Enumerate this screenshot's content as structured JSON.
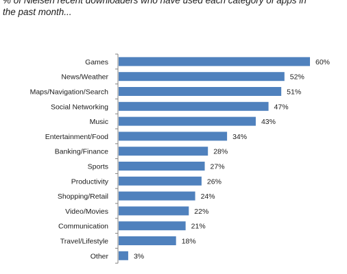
{
  "title_lines": [
    "% of Nielsen recent downloaders who have used each category of apps in",
    "the past month..."
  ],
  "chart_data": {
    "type": "bar",
    "orientation": "horizontal",
    "title": "% of Nielsen recent downloaders who have used each category of apps in the past month...",
    "categories": [
      "Games",
      "News/Weather",
      "Maps/Navigation/Search",
      "Social Networking",
      "Music",
      "Entertainment/Food",
      "Banking/Finance",
      "Sports",
      "Productivity",
      "Shopping/Retail",
      "Video/Movies",
      "Communication",
      "Travel/Lifestyle",
      "Other"
    ],
    "values": [
      60,
      52,
      51,
      47,
      43,
      34,
      28,
      27,
      26,
      24,
      22,
      21,
      18,
      3
    ],
    "value_labels": [
      "60%",
      "52%",
      "51%",
      "47%",
      "43%",
      "34%",
      "28%",
      "27%",
      "26%",
      "24%",
      "22%",
      "21%",
      "18%",
      "3%"
    ],
    "xlim": [
      0,
      60
    ],
    "bar_color": "#4f81bd",
    "grid": false,
    "legend": "none"
  }
}
